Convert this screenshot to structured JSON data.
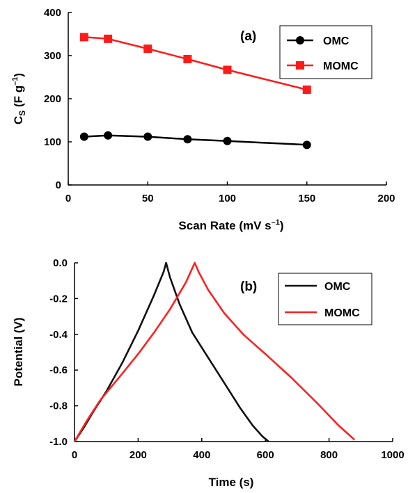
{
  "chart_data": [
    {
      "type": "line",
      "panel_label": "(a)",
      "xlabel": "Scan Rate (mV s",
      "xlabel_sup": "–1",
      "xlabel_end": ")",
      "ylabel_main": "C",
      "ylabel_sub": "S",
      "ylabel_unit": " (F g",
      "ylabel_sup": "–1",
      "ylabel_end": ")",
      "xlim": [
        0,
        200
      ],
      "ylim": [
        0,
        400
      ],
      "xticks": [
        "0",
        "50",
        "100",
        "150",
        "200"
      ],
      "yticks": [
        "0",
        "100",
        "200",
        "300",
        "400"
      ],
      "grid": false,
      "legend_position": "top-right",
      "series": [
        {
          "name": "OMC",
          "color": "#000000",
          "marker": "circle",
          "x": [
            10,
            25,
            50,
            75,
            100,
            150
          ],
          "y": [
            112,
            115,
            112,
            106,
            102,
            93
          ]
        },
        {
          "name": "MOMC",
          "color": "#ff1a1a",
          "marker": "square",
          "x": [
            10,
            25,
            50,
            75,
            100,
            150
          ],
          "y": [
            343,
            339,
            316,
            292,
            267,
            221
          ]
        }
      ]
    },
    {
      "type": "line",
      "panel_label": "(b)",
      "xlabel": "Time (s)",
      "ylabel": "Potential (V)",
      "xlim": [
        0,
        1000
      ],
      "ylim": [
        -1.0,
        0.0
      ],
      "xticks": [
        "0",
        "200",
        "400",
        "600",
        "800",
        "1000"
      ],
      "yticks": [
        "0.0",
        "-0.2",
        "-0.4",
        "-0.6",
        "-0.8",
        "-1.0"
      ],
      "grid": false,
      "legend_position": "top-right",
      "series": [
        {
          "name": "OMC",
          "color": "#111111",
          "x": [
            0,
            30,
            60,
            100,
            150,
            200,
            250,
            280,
            288,
            300,
            330,
            370,
            420,
            470,
            520,
            560,
            590,
            610
          ],
          "y": [
            -1.0,
            -0.92,
            -0.83,
            -0.72,
            -0.56,
            -0.38,
            -0.18,
            -0.05,
            0.0,
            -0.08,
            -0.23,
            -0.39,
            -0.53,
            -0.67,
            -0.81,
            -0.91,
            -0.97,
            -1.0
          ]
        },
        {
          "name": "MOMC",
          "color": "#ff2020",
          "x": [
            0,
            40,
            80,
            150,
            200,
            250,
            300,
            350,
            378,
            390,
            420,
            470,
            530,
            600,
            680,
            760,
            830,
            880
          ],
          "y": [
            -1.0,
            -0.88,
            -0.77,
            -0.62,
            -0.51,
            -0.39,
            -0.26,
            -0.11,
            0.0,
            -0.05,
            -0.15,
            -0.28,
            -0.4,
            -0.51,
            -0.64,
            -0.78,
            -0.91,
            -0.99
          ]
        }
      ]
    }
  ]
}
